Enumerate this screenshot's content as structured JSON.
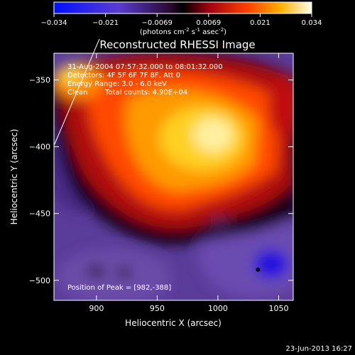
{
  "chart_data": {
    "type": "heatmap",
    "title": "Reconstructed RHESSI Image",
    "xlabel": "Heliocentric X (arcsec)",
    "ylabel": "Heliocentric Y (arcsec)",
    "xlim": [
      865,
      1062
    ],
    "ylim": [
      -515,
      -330
    ],
    "x_ticks": [
      900,
      950,
      1000,
      1050
    ],
    "y_ticks": [
      -500,
      -450,
      -400,
      -350
    ],
    "colorbar": {
      "min": -0.034,
      "max": 0.034,
      "ticks": [
        "-0.034",
        "-0.021",
        "-0.0069",
        "0.0069",
        "0.021",
        "0.034"
      ],
      "label_pre": "(photons cm",
      "label_sup1": "-2",
      "label_mid1": " s",
      "label_sup2": "-1",
      "label_mid2": " asec",
      "label_sup3": "-2",
      "label_post": ")"
    },
    "annotations": {
      "time": "31-Aug-2004 07:57:32.000 to 08:01:32.000",
      "detectors": "Detectors: 4F 5F 6F 7F 8F, Att 0",
      "energy": "Energy Range: 3.0 - 6.0 keV",
      "method": "Clean",
      "counts": "Total counts: 4.90E+04",
      "peak": "Position of Peak = [982,-388]"
    },
    "peak": [
      982,
      -388
    ],
    "minimum_marker": [
      1033,
      -492
    ],
    "footer_date": "23-Jun-2013 16:27"
  },
  "colors": {
    "background": "#000000",
    "text": "#ffffff",
    "colormap": [
      "#1a00ff",
      "#5a3cc8",
      "#7a5cc0",
      "#2a0a30",
      "#000000",
      "#8a0010",
      "#e02000",
      "#ff7000",
      "#ffc020",
      "#fff8a0"
    ]
  }
}
